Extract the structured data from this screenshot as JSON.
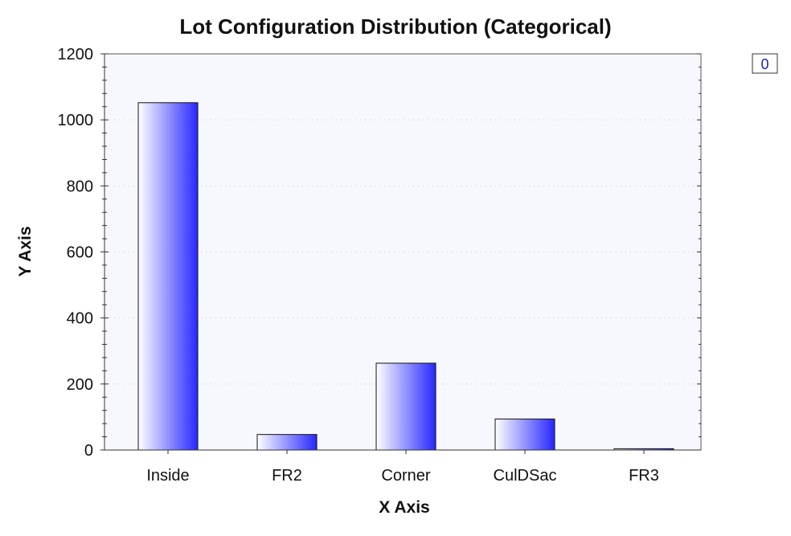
{
  "chart_data": {
    "type": "bar",
    "title": "Lot Configuration Distribution (Categorical)",
    "xlabel": "X Axis",
    "ylabel": "Y Axis",
    "categories": [
      "Inside",
      "FR2",
      "Corner",
      "CulDSac",
      "FR3"
    ],
    "series": [
      {
        "name": "0",
        "values": [
          1052,
          47,
          263,
          94,
          4
        ]
      }
    ],
    "ylim": [
      0,
      1200
    ],
    "yticks": [
      0,
      200,
      400,
      600,
      800,
      1000,
      1200
    ],
    "grid": true,
    "legend_position": "top-right"
  },
  "colors": {
    "bar_gradient_start": "#ffffff",
    "bar_gradient_end": "#2727ff",
    "plot_background": "#f7f7fe",
    "legend_text": "#2020c0"
  }
}
